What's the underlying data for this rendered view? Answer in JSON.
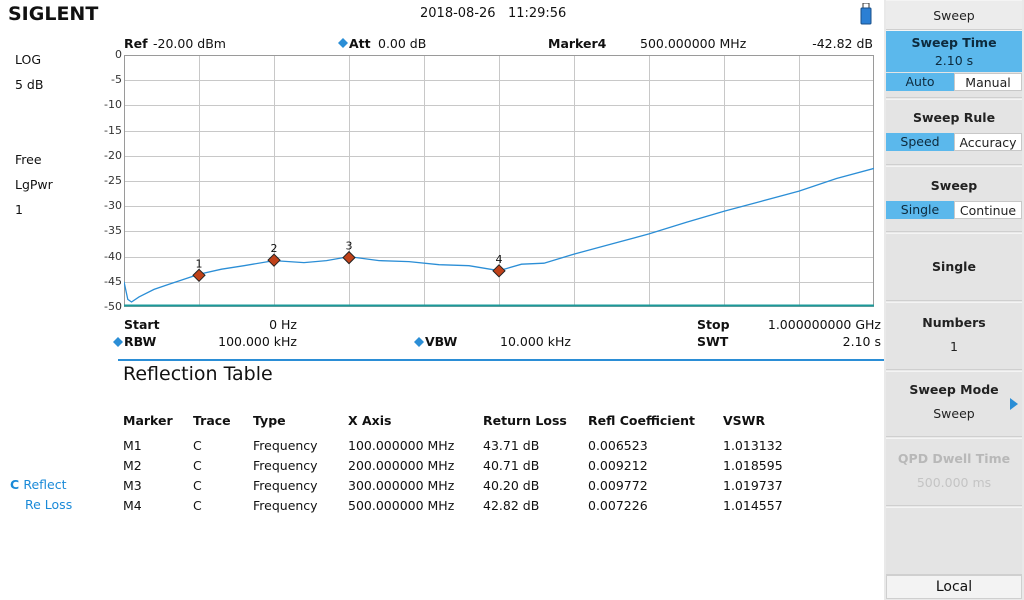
{
  "brand": "SIGLENT",
  "datetime": "2018-08-26   11:29:56",
  "left": {
    "scale_mode": "LOG",
    "scale_div": "5 dB",
    "trace_mode": "Free",
    "detector": "LgPwr",
    "trace_num": "1",
    "trace_letter": "C",
    "trace_reflect": "Reflect",
    "trace_reloss": "Re Loss"
  },
  "header": {
    "ref_label": "Ref",
    "ref_value": "-20.00 dBm",
    "att_label": "Att",
    "att_value": "0.00 dB",
    "marker_label": "Marker4",
    "marker_freq": "500.000000 MHz",
    "marker_level": "-42.82 dB"
  },
  "footer": {
    "start_label": "Start",
    "start_value": "0 Hz",
    "stop_label": "Stop",
    "stop_value": "1.000000000 GHz",
    "rbw_label": "RBW",
    "rbw_value": "100.000 kHz",
    "vbw_label": "VBW",
    "vbw_value": "10.000 kHz",
    "swt_label": "SWT",
    "swt_value": "2.10 s"
  },
  "chart_data": {
    "type": "line",
    "yticks": [
      "0",
      "-5",
      "-10",
      "-15",
      "-20",
      "-25",
      "-30",
      "-35",
      "-40",
      "-45",
      "-50"
    ],
    "ylim": [
      -50,
      0
    ],
    "xlim_mhz": [
      0,
      1000
    ],
    "series": [
      {
        "color": "#2b8ed6",
        "x": [
          0,
          5,
          10,
          20,
          40,
          60,
          80,
          100,
          130,
          160,
          200,
          240,
          270,
          300,
          340,
          380,
          420,
          460,
          500,
          530,
          560,
          600,
          650,
          700,
          750,
          800,
          850,
          900,
          950,
          1000
        ],
        "y": [
          -45,
          -48.5,
          -49,
          -48,
          -46.5,
          -45.5,
          -44.5,
          -43.5,
          -42.5,
          -41.8,
          -40.8,
          -41.2,
          -40.8,
          -40,
          -40.8,
          -41,
          -41.6,
          -41.8,
          -42.8,
          -41.5,
          -41.3,
          -39.5,
          -37.5,
          -35.5,
          -33.2,
          -31,
          -29,
          -27,
          -24.5,
          -22.5
        ]
      }
    ],
    "markers": [
      {
        "label": "1",
        "x": 100,
        "y": -43.71
      },
      {
        "label": "2",
        "x": 200,
        "y": -40.71
      },
      {
        "label": "3",
        "x": 300,
        "y": -40.2
      },
      {
        "label": "4",
        "x": 500,
        "y": -42.82
      }
    ]
  },
  "table": {
    "title": "Reflection Table",
    "headers": [
      "Marker",
      "Trace",
      "Type",
      "X Axis",
      "Return Loss",
      "Refl Coefficient",
      "VSWR"
    ],
    "rows": [
      [
        "M1",
        "C",
        "Frequency",
        "100.000000 MHz",
        "43.71 dB",
        "0.006523",
        "1.013132"
      ],
      [
        "M2",
        "C",
        "Frequency",
        "200.000000 MHz",
        "40.71 dB",
        "0.009212",
        "1.018595"
      ],
      [
        "M3",
        "C",
        "Frequency",
        "300.000000 MHz",
        "40.20 dB",
        "0.009772",
        "1.019737"
      ],
      [
        "M4",
        "C",
        "Frequency",
        "500.000000 MHz",
        "42.82 dB",
        "0.007226",
        "1.014557"
      ]
    ]
  },
  "panel": {
    "title": "Sweep",
    "sweep_time": {
      "title": "Sweep Time",
      "value": "2.10 s",
      "opt_a": "Auto",
      "opt_b": "Manual"
    },
    "sweep_rule": {
      "title": "Sweep Rule",
      "opt_a": "Speed",
      "opt_b": "Accuracy"
    },
    "sweep": {
      "title": "Sweep",
      "opt_a": "Single",
      "opt_b": "Continue"
    },
    "single": {
      "title": "Single"
    },
    "numbers": {
      "title": "Numbers",
      "value": "1"
    },
    "sweep_mode": {
      "title": "Sweep Mode",
      "value": "Sweep"
    },
    "qpd": {
      "title": "QPD Dwell Time",
      "value": "500.000 ms"
    },
    "local": "Local"
  },
  "colors": {
    "trace": "#2b8ed6",
    "accent": "#5bb8ec",
    "marker": "#c0421a"
  }
}
